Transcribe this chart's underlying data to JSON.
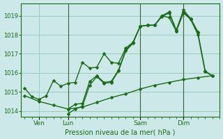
{
  "xlabel": "Pression niveau de la mer( hPa )",
  "background_color": "#cce8e8",
  "grid_color": "#99ccbb",
  "line_color": "#1a6b1a",
  "ylim": [
    1013.7,
    1019.65
  ],
  "yticks": [
    1014,
    1015,
    1016,
    1017,
    1018,
    1019
  ],
  "xtick_labels": [
    "Ven",
    "Lun",
    "Sam",
    "Dim"
  ],
  "xtick_positions": [
    4,
    12,
    32,
    44
  ],
  "total_points": 52,
  "series": [
    {
      "x": [
        0,
        2,
        4,
        6,
        8,
        10,
        12,
        14,
        16,
        18,
        20,
        22,
        24,
        26,
        28,
        30,
        32,
        34,
        36,
        38,
        40,
        42,
        44,
        46,
        48,
        50,
        52
      ],
      "y": [
        1015.2,
        1014.75,
        1014.6,
        1014.8,
        1015.6,
        1015.3,
        1015.45,
        1015.5,
        1016.55,
        1016.25,
        1016.3,
        1017.0,
        1016.55,
        1016.5,
        1017.3,
        1017.6,
        1018.45,
        1018.5,
        1018.5,
        1019.0,
        1018.9,
        1018.2,
        1019.2,
        1018.85,
        1018.1,
        1016.1,
        1015.85
      ]
    },
    {
      "x": [
        12,
        14,
        16,
        18,
        20,
        22,
        24,
        26,
        28,
        30,
        32,
        34,
        36,
        38,
        40,
        42,
        44,
        46,
        48,
        50,
        52
      ],
      "y": [
        1013.85,
        1014.1,
        1014.25,
        1015.35,
        1015.8,
        1015.45,
        1015.5,
        1016.1,
        1017.15,
        1017.55,
        1018.45,
        1018.5,
        1018.5,
        1018.95,
        1019.15,
        1018.2,
        1019.15,
        1018.8,
        1018.0,
        1016.05,
        1015.85
      ]
    },
    {
      "x": [
        12,
        14,
        16,
        18,
        20,
        22,
        24,
        26,
        28,
        30,
        32,
        34,
        36,
        38,
        40,
        42,
        44,
        46,
        48
      ],
      "y": [
        1014.1,
        1014.35,
        1014.4,
        1015.55,
        1015.85,
        1015.5,
        1015.55,
        1016.15,
        1017.2,
        1017.6,
        1018.45,
        1018.5,
        1018.5,
        1019.0,
        1019.2,
        1018.25,
        1019.3,
        1018.85,
        1018.15
      ]
    },
    {
      "x": [
        0,
        4,
        8,
        12,
        16,
        20,
        24,
        28,
        32,
        36,
        40,
        44,
        48,
        52
      ],
      "y": [
        1014.8,
        1014.5,
        1014.3,
        1014.1,
        1014.2,
        1014.45,
        1014.7,
        1014.9,
        1015.15,
        1015.35,
        1015.5,
        1015.65,
        1015.75,
        1015.85
      ]
    }
  ],
  "vlines": [
    12,
    32,
    44
  ],
  "vline_color": "#336633",
  "markersize": 2.5,
  "linewidth": 1.0
}
